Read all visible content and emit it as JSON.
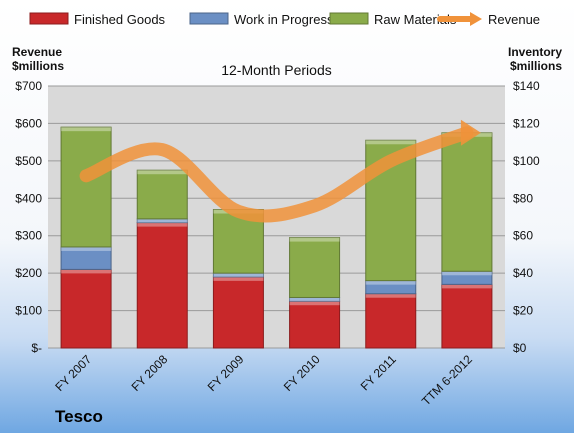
{
  "chart_data": {
    "type": "bar",
    "stacked": true,
    "subtitle": "12-Month Periods",
    "company": "Tesco",
    "categories": [
      "FY 2007",
      "FY 2008",
      "FY 2009",
      "FY 2010",
      "FY 2011",
      "TTM 6-2012"
    ],
    "left_axis": {
      "title_line1": "Revenue",
      "title_line2": "$millions",
      "range": [
        0,
        700
      ],
      "ticks": [
        "$-",
        "$100",
        "$200",
        "$300",
        "$400",
        "$500",
        "$600",
        "$700"
      ],
      "tick_values": [
        0,
        100,
        200,
        300,
        400,
        500,
        600,
        700
      ]
    },
    "right_axis": {
      "title_line1": "Inventory",
      "title_line2": "$millions",
      "range": [
        0,
        140
      ],
      "ticks": [
        "$0",
        "$20",
        "$40",
        "$60",
        "$80",
        "$100",
        "$120",
        "$140"
      ],
      "tick_values": [
        0,
        20,
        40,
        60,
        80,
        100,
        120,
        140
      ]
    },
    "series": [
      {
        "name": "Finished Goods",
        "axis": "right",
        "color": "#c8282a",
        "values": [
          42,
          67,
          38,
          25,
          29,
          34
        ]
      },
      {
        "name": "Work in Progress",
        "axis": "right",
        "color": "#6b8fc4",
        "values": [
          12,
          2,
          2,
          2,
          7,
          7
        ]
      },
      {
        "name": "Raw Materials",
        "axis": "right",
        "color": "#8aab4a",
        "values": [
          64,
          26,
          34,
          32,
          75,
          74
        ]
      },
      {
        "name": "Revenue",
        "type": "line",
        "axis": "left",
        "color": "#f0923a",
        "values": [
          460,
          530,
          365,
          380,
          500,
          575
        ]
      }
    ],
    "plot_bg": "#d9d9d9",
    "grid": true,
    "legend_position": "top"
  }
}
